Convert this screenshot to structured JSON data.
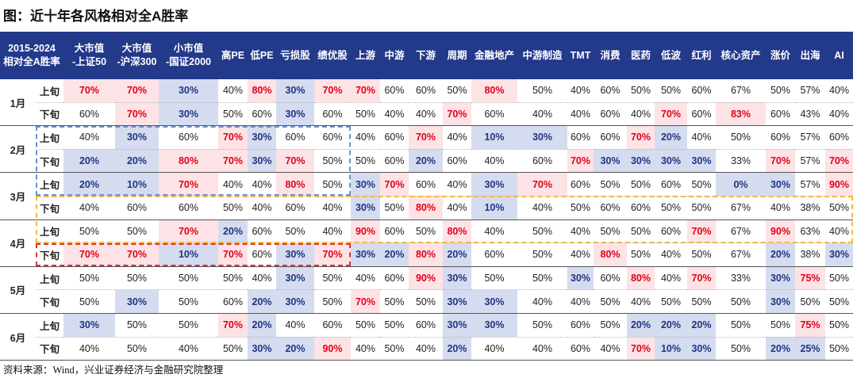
{
  "header": {
    "title": "图：近十年各风格相对全A胜率"
  },
  "table": {
    "corner": [
      "2015-2024",
      "相对全A胜率"
    ],
    "columns": [
      [
        "大市值",
        "-上证50"
      ],
      [
        "大市值",
        "-沪深300"
      ],
      [
        "小市值",
        "-国证2000"
      ],
      [
        "高PE"
      ],
      [
        "低PE"
      ],
      [
        "亏损股"
      ],
      [
        "绩优股"
      ],
      [
        "上游"
      ],
      [
        "中游"
      ],
      [
        "下游"
      ],
      [
        "周期"
      ],
      [
        "金融地产"
      ],
      [
        "中游制造"
      ],
      [
        "TMT"
      ],
      [
        "消费"
      ],
      [
        "医药"
      ],
      [
        "低波"
      ],
      [
        "红利"
      ],
      [
        "核心资产"
      ],
      [
        "涨价"
      ],
      [
        "出海"
      ],
      [
        "AI"
      ]
    ],
    "months": [
      {
        "month": "1月",
        "periods": [
          {
            "label": "上旬",
            "values": [
              "70%",
              "70%",
              "30%",
              "40%",
              "80%",
              "30%",
              "70%",
              "70%",
              "60%",
              "60%",
              "50%",
              "80%",
              "50%",
              "40%",
              "60%",
              "50%",
              "50%",
              "60%",
              "67%",
              "50%",
              "57%",
              "40%"
            ]
          },
          {
            "label": "下旬",
            "values": [
              "60%",
              "70%",
              "30%",
              "50%",
              "60%",
              "30%",
              "60%",
              "50%",
              "40%",
              "40%",
              "70%",
              "60%",
              "40%",
              "40%",
              "60%",
              "40%",
              "70%",
              "60%",
              "83%",
              "60%",
              "43%",
              "40%"
            ]
          }
        ]
      },
      {
        "month": "2月",
        "periods": [
          {
            "label": "上旬",
            "values": [
              "40%",
              "30%",
              "60%",
              "70%",
              "30%",
              "60%",
              "60%",
              "40%",
              "60%",
              "70%",
              "40%",
              "10%",
              "30%",
              "60%",
              "60%",
              "70%",
              "20%",
              "40%",
              "50%",
              "60%",
              "57%",
              "60%"
            ]
          },
          {
            "label": "下旬",
            "values": [
              "20%",
              "20%",
              "80%",
              "70%",
              "30%",
              "70%",
              "50%",
              "50%",
              "60%",
              "20%",
              "60%",
              "40%",
              "60%",
              "70%",
              "30%",
              "30%",
              "30%",
              "30%",
              "33%",
              "70%",
              "57%",
              "70%"
            ]
          }
        ]
      },
      {
        "month": "3月",
        "periods": [
          {
            "label": "上旬",
            "values": [
              "20%",
              "10%",
              "70%",
              "40%",
              "40%",
              "80%",
              "50%",
              "30%",
              "70%",
              "60%",
              "40%",
              "30%",
              "70%",
              "60%",
              "50%",
              "50%",
              "60%",
              "50%",
              "0%",
              "30%",
              "57%",
              "90%"
            ]
          },
          {
            "label": "下旬",
            "values": [
              "40%",
              "60%",
              "60%",
              "50%",
              "40%",
              "60%",
              "40%",
              "30%",
              "50%",
              "80%",
              "40%",
              "10%",
              "40%",
              "50%",
              "60%",
              "60%",
              "50%",
              "50%",
              "67%",
              "40%",
              "38%",
              "50%"
            ]
          }
        ]
      },
      {
        "month": "4月",
        "periods": [
          {
            "label": "上旬",
            "values": [
              "50%",
              "50%",
              "70%",
              "20%",
              "60%",
              "50%",
              "40%",
              "90%",
              "60%",
              "50%",
              "80%",
              "40%",
              "50%",
              "40%",
              "50%",
              "50%",
              "60%",
              "70%",
              "67%",
              "90%",
              "63%",
              "40%"
            ]
          },
          {
            "label": "下旬",
            "values": [
              "70%",
              "70%",
              "10%",
              "70%",
              "60%",
              "30%",
              "70%",
              "30%",
              "20%",
              "80%",
              "20%",
              "60%",
              "50%",
              "40%",
              "80%",
              "50%",
              "40%",
              "50%",
              "67%",
              "20%",
              "38%",
              "30%"
            ]
          }
        ]
      },
      {
        "month": "5月",
        "periods": [
          {
            "label": "上旬",
            "values": [
              "50%",
              "50%",
              "50%",
              "50%",
              "40%",
              "30%",
              "50%",
              "40%",
              "60%",
              "90%",
              "30%",
              "50%",
              "50%",
              "30%",
              "60%",
              "80%",
              "40%",
              "70%",
              "33%",
              "30%",
              "75%",
              "50%"
            ]
          },
          {
            "label": "下旬",
            "values": [
              "50%",
              "30%",
              "50%",
              "60%",
              "20%",
              "30%",
              "50%",
              "70%",
              "50%",
              "50%",
              "30%",
              "30%",
              "40%",
              "40%",
              "50%",
              "40%",
              "50%",
              "50%",
              "50%",
              "30%",
              "50%",
              "50%"
            ]
          }
        ]
      },
      {
        "month": "6月",
        "periods": [
          {
            "label": "上旬",
            "values": [
              "30%",
              "50%",
              "50%",
              "70%",
              "20%",
              "40%",
              "60%",
              "50%",
              "50%",
              "60%",
              "30%",
              "30%",
              "50%",
              "60%",
              "50%",
              "20%",
              "20%",
              "20%",
              "50%",
              "50%",
              "75%",
              "50%"
            ]
          },
          {
            "label": "下旬",
            "values": [
              "40%",
              "50%",
              "40%",
              "50%",
              "30%",
              "20%",
              "90%",
              "40%",
              "50%",
              "40%",
              "20%",
              "40%",
              "40%",
              "60%",
              "40%",
              "70%",
              "10%",
              "30%",
              "50%",
              "20%",
              "25%",
              "50%"
            ]
          }
        ]
      }
    ]
  },
  "footer": {
    "source": "资料来源：Wind，兴业证券经济与金融研究院整理"
  }
}
